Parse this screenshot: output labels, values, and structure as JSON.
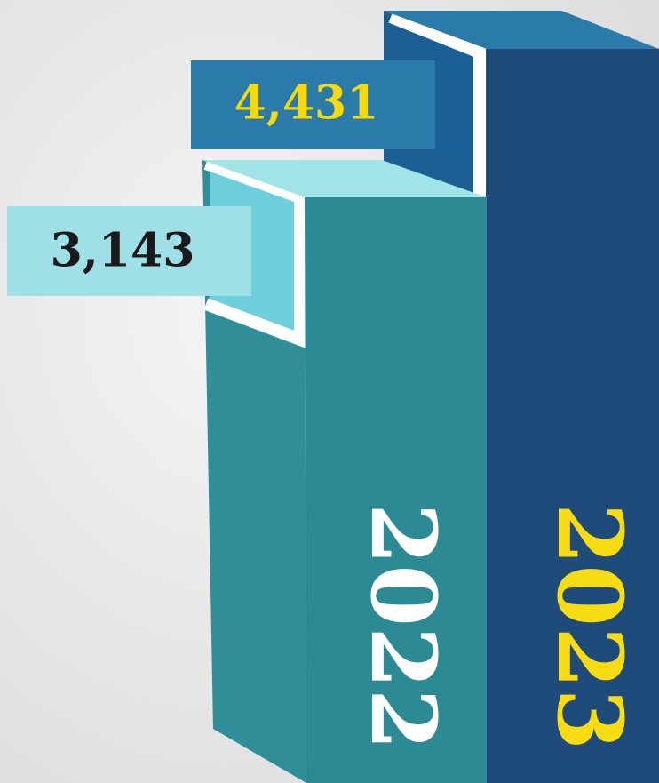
{
  "chart_data": {
    "type": "bar",
    "categories": [
      "2022",
      "2023"
    ],
    "values": [
      3143,
      4431
    ],
    "value_labels": [
      "3,143",
      "4,431"
    ],
    "colors": [
      "#2b8a94",
      "#1e4b7a"
    ]
  }
}
